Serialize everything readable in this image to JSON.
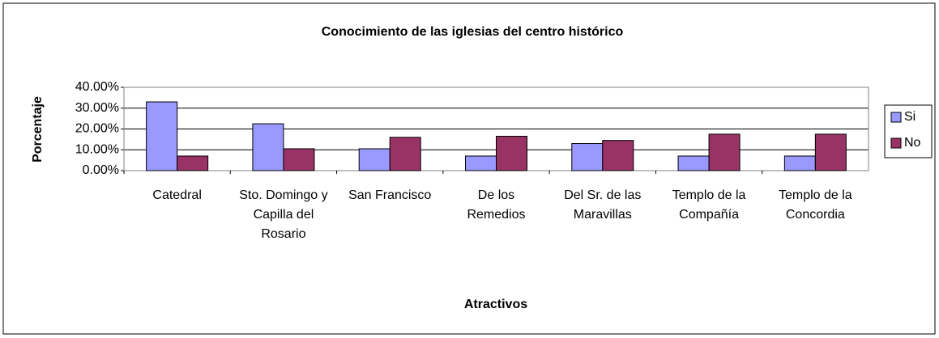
{
  "chart_data": {
    "type": "bar",
    "title": "Conocimiento de las iglesias del centro histórico",
    "x_label": "Atractivos",
    "y_label": "Porcentaje",
    "categories": [
      "Catedral",
      "Sto. Domingo y Capilla del Rosario",
      "San Francisco",
      "De los Remedios",
      "Del Sr. de las Maravillas",
      "Templo de la Compañía",
      "Templo de la Concordia"
    ],
    "series": [
      {
        "name": "Si",
        "color": "#9999ff",
        "values": [
          33,
          22.5,
          10.5,
          7,
          13,
          7,
          7
        ]
      },
      {
        "name": "No",
        "color": "#993366",
        "values": [
          7,
          10.5,
          16,
          16.5,
          14.5,
          17.5,
          17.5
        ]
      }
    ],
    "ylim": [
      0,
      40
    ],
    "yticks": [
      {
        "value": 0,
        "label": "0.00%"
      },
      {
        "value": 10,
        "label": "10.00%"
      },
      {
        "value": 20,
        "label": "20.00%"
      },
      {
        "value": 30,
        "label": "30.00%"
      },
      {
        "value": 40,
        "label": "40.00%"
      }
    ],
    "grid": true,
    "legend": "right"
  }
}
